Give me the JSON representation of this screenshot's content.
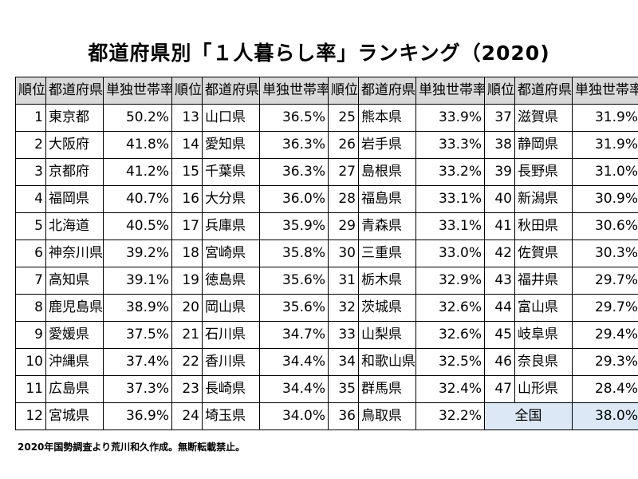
{
  "title": "都道府県別「１人暮らし率」ランキング（2020)",
  "headers": {
    "rank": "順位",
    "prefecture": "都道府県",
    "rate": "単独世帯率"
  },
  "rows": [
    [
      [
        "1",
        "東京都",
        "50.2%"
      ],
      [
        "13",
        "山口県",
        "36.5%"
      ],
      [
        "25",
        "熊本県",
        "33.9%"
      ],
      [
        "37",
        "滋賀県",
        "31.9%"
      ]
    ],
    [
      [
        "2",
        "大阪府",
        "41.8%"
      ],
      [
        "14",
        "愛知県",
        "36.3%"
      ],
      [
        "26",
        "岩手県",
        "33.3%"
      ],
      [
        "38",
        "静岡県",
        "31.9%"
      ]
    ],
    [
      [
        "3",
        "京都府",
        "41.2%"
      ],
      [
        "15",
        "千葉県",
        "36.3%"
      ],
      [
        "27",
        "島根県",
        "33.2%"
      ],
      [
        "39",
        "長野県",
        "31.0%"
      ]
    ],
    [
      [
        "4",
        "福岡県",
        "40.7%"
      ],
      [
        "16",
        "大分県",
        "36.0%"
      ],
      [
        "28",
        "福島県",
        "33.1%"
      ],
      [
        "40",
        "新潟県",
        "30.9%"
      ]
    ],
    [
      [
        "5",
        "北海道",
        "40.5%"
      ],
      [
        "17",
        "兵庫県",
        "35.9%"
      ],
      [
        "29",
        "青森県",
        "33.1%"
      ],
      [
        "41",
        "秋田県",
        "30.6%"
      ]
    ],
    [
      [
        "6",
        "神奈川県",
        "39.2%"
      ],
      [
        "18",
        "宮崎県",
        "35.8%"
      ],
      [
        "30",
        "三重県",
        "33.0%"
      ],
      [
        "42",
        "佐賀県",
        "30.3%"
      ]
    ],
    [
      [
        "7",
        "高知県",
        "39.1%"
      ],
      [
        "19",
        "徳島県",
        "35.6%"
      ],
      [
        "31",
        "栃木県",
        "32.9%"
      ],
      [
        "43",
        "福井県",
        "29.7%"
      ]
    ],
    [
      [
        "8",
        "鹿児島県",
        "38.9%"
      ],
      [
        "20",
        "岡山県",
        "35.6%"
      ],
      [
        "32",
        "茨城県",
        "32.6%"
      ],
      [
        "44",
        "富山県",
        "29.7%"
      ]
    ],
    [
      [
        "9",
        "愛媛県",
        "37.5%"
      ],
      [
        "21",
        "石川県",
        "34.7%"
      ],
      [
        "33",
        "山梨県",
        "32.6%"
      ],
      [
        "45",
        "岐阜県",
        "29.4%"
      ]
    ],
    [
      [
        "10",
        "沖縄県",
        "37.4%"
      ],
      [
        "22",
        "香川県",
        "34.4%"
      ],
      [
        "34",
        "和歌山県",
        "32.5%"
      ],
      [
        "46",
        "奈良県",
        "29.3%"
      ]
    ],
    [
      [
        "11",
        "広島県",
        "37.3%"
      ],
      [
        "23",
        "長崎県",
        "34.4%"
      ],
      [
        "35",
        "群馬県",
        "32.4%"
      ],
      [
        "47",
        "山形県",
        "28.4%"
      ]
    ],
    [
      [
        "12",
        "宮城県",
        "36.9%"
      ],
      [
        "24",
        "埼玉県",
        "34.0%"
      ],
      [
        "36",
        "鳥取県",
        "32.2%"
      ]
    ]
  ],
  "national": {
    "label": "全国",
    "value": "38.0%"
  },
  "footnote": "2020年国勢調査より荒川和久作成。無断転載禁止。",
  "colors": {
    "header_bg": "#d9d9d9",
    "national_bg": "#dce8f5"
  }
}
